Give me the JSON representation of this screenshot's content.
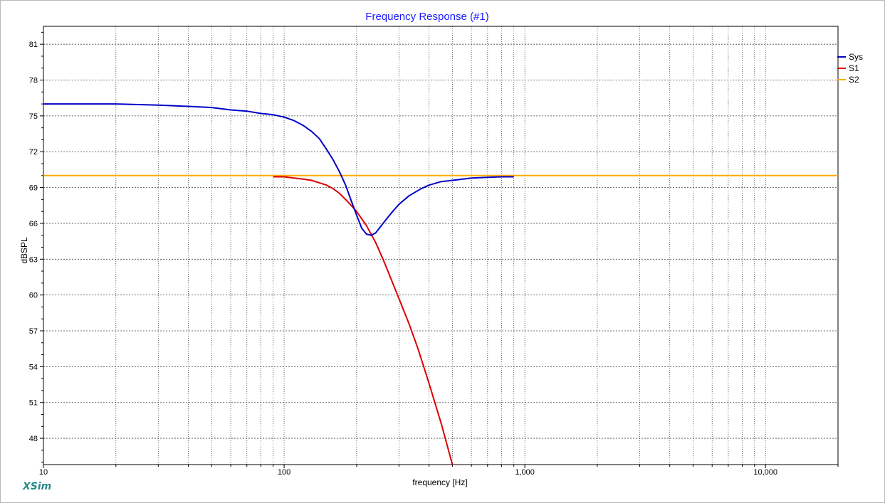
{
  "window": {
    "brand": "XSim"
  },
  "chart_data": {
    "type": "line",
    "title": "Frequency Response (#1)",
    "xlabel": "frequency [Hz]",
    "ylabel": "dBSPL",
    "x_scale": "log",
    "xlim": [
      10,
      20000
    ],
    "ylim": [
      45.8,
      82.5
    ],
    "grid": true,
    "legend_position": "top-right",
    "x_tick_labels": [
      {
        "value": 10,
        "label": "10"
      },
      {
        "value": 100,
        "label": "100"
      },
      {
        "value": 1000,
        "label": "1,000"
      },
      {
        "value": 10000,
        "label": "10,000"
      }
    ],
    "y_ticks": [
      48,
      51,
      54,
      57,
      60,
      63,
      66,
      69,
      72,
      75,
      78,
      81
    ],
    "series": [
      {
        "name": "Sys",
        "color": "#0000c8",
        "x": [
          10,
          20,
          30,
          40,
          50,
          60,
          70,
          80,
          90,
          100,
          110,
          120,
          130,
          140,
          150,
          160,
          170,
          180,
          190,
          200,
          210,
          220,
          230,
          240,
          260,
          280,
          300,
          330,
          370,
          400,
          450,
          500,
          600,
          700,
          800,
          900
        ],
        "y": [
          76.0,
          76.0,
          75.9,
          75.8,
          75.7,
          75.5,
          75.4,
          75.2,
          75.1,
          74.9,
          74.6,
          74.2,
          73.7,
          73.1,
          72.2,
          71.3,
          70.3,
          69.2,
          67.9,
          66.7,
          65.6,
          65.1,
          65.0,
          65.2,
          66.1,
          66.9,
          67.6,
          68.3,
          68.9,
          69.2,
          69.5,
          69.6,
          69.8,
          69.85,
          69.9,
          69.9
        ]
      },
      {
        "name": "S1",
        "color": "#dd0000",
        "x": [
          90,
          100,
          110,
          120,
          130,
          140,
          150,
          160,
          170,
          180,
          190,
          200,
          220,
          240,
          260,
          280,
          300,
          330,
          360,
          400,
          450,
          500
        ],
        "y": [
          69.9,
          69.9,
          69.8,
          69.7,
          69.6,
          69.4,
          69.2,
          68.9,
          68.5,
          68.0,
          67.5,
          67.0,
          65.8,
          64.4,
          62.8,
          61.2,
          59.7,
          57.6,
          55.5,
          52.6,
          49.2,
          45.8
        ]
      },
      {
        "name": "S2",
        "color": "#ffaa00",
        "x": [
          10,
          20000
        ],
        "y": [
          70.0,
          70.0
        ]
      }
    ]
  }
}
